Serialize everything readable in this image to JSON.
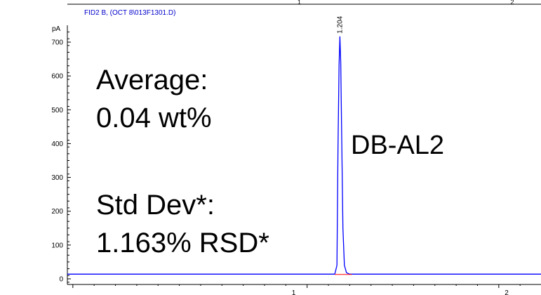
{
  "header": {
    "signal_label": "FID2 B, (OCT 8\\013F1301.D)",
    "colors": {
      "trace": "#0000ff",
      "baseline": "#ff0000",
      "header_text": "#0000cc"
    }
  },
  "stats": {
    "average_label": "Average:",
    "average_value": "0.04 wt%",
    "stdev_label": "Std Dev*:",
    "stdev_value": "1.163% RSD*"
  },
  "column_label": "DB-AL2",
  "chart_data": {
    "type": "line",
    "ylabel": "pA",
    "xlim": [
      0,
      2.15
    ],
    "ylim": [
      -15,
      740
    ],
    "x_ticks_top": [
      1,
      2
    ],
    "x_ticks_bottom": [
      1,
      2
    ],
    "y_ticks": [
      0,
      100,
      200,
      300,
      400,
      500,
      600,
      700
    ],
    "peaks": [
      {
        "retention_time": "1.204",
        "apex": 717
      }
    ],
    "series": [
      {
        "x": [
          0.0,
          1.18,
          1.19,
          1.195,
          1.2,
          1.204,
          1.208,
          1.213,
          1.218,
          1.225,
          1.235,
          1.25,
          1.3,
          2.15
        ],
        "y": [
          14,
          14,
          40,
          390,
          630,
          717,
          640,
          400,
          150,
          40,
          18,
          14,
          14,
          14
        ]
      }
    ],
    "baseline": {
      "x": [
        1.18,
        1.26
      ],
      "y": [
        13,
        13
      ]
    }
  }
}
